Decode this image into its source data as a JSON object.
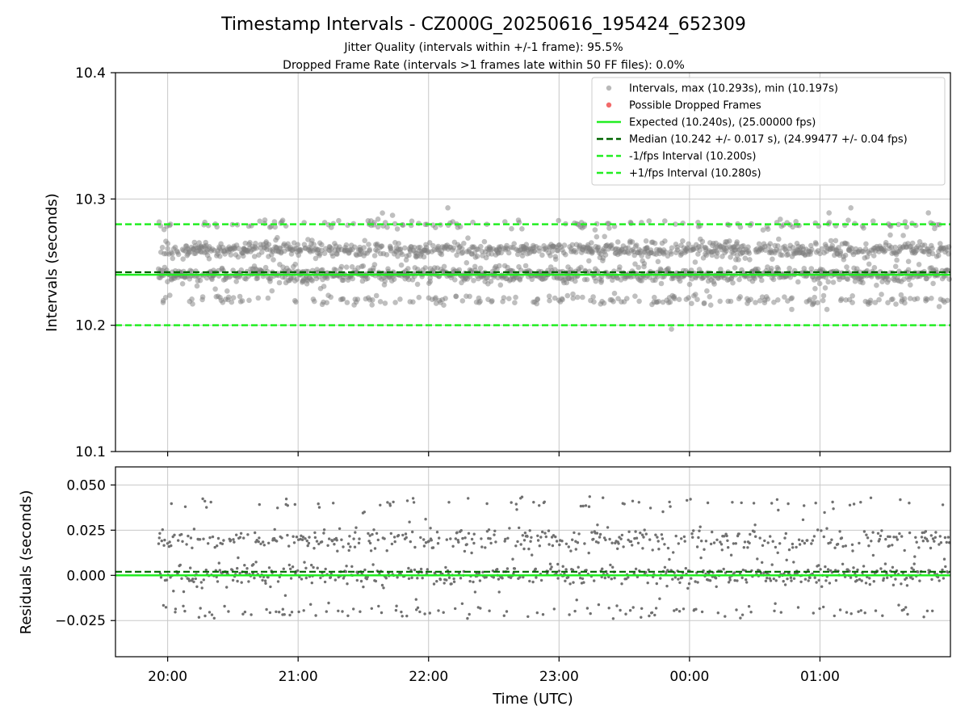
{
  "figure": {
    "title": "Timestamp Intervals - CZ000G_20250616_195424_652309",
    "subtitle_1": "Jitter Quality (intervals within +/-1 frame): 95.5%",
    "subtitle_2": "Dropped Frame Rate (intervals >1 frames late within 50 FF files): 0.0%"
  },
  "colors": {
    "points": "#808080",
    "dropped": "#f05050",
    "expected": "#22ee22",
    "median": "#006400",
    "fps_bounds": "#22ee22",
    "grid": "#c8c8c8"
  },
  "chart_data": [
    {
      "type": "scatter",
      "ylabel": "Intervals (seconds)",
      "xlabel": "",
      "ylim": [
        10.1,
        10.4
      ],
      "yticks": [
        "10.1",
        "10.2",
        "10.3",
        "10.4"
      ],
      "x_range_hours": [
        19.6,
        26.0
      ],
      "grid": true,
      "legend_position": "top-right",
      "legend": [
        "Intervals, max (10.293s), min (10.197s)",
        "Possible Dropped Frames",
        "Expected (10.240s), (25.00000 fps)",
        "Median (10.242 +/- 0.017 s), (24.99477 +/- 0.04 fps)",
        "-1/fps Interval (10.200s)",
        "+1/fps Interval (10.280s)"
      ],
      "expected": 10.24,
      "median": 10.242,
      "minus_fps_interval": 10.2,
      "plus_fps_interval": 10.28,
      "max_interval": 10.293,
      "min_interval": 10.197,
      "point_clusters": [
        {
          "center": 10.24,
          "spread": 0.003,
          "share": 0.42
        },
        {
          "center": 10.26,
          "spread": 0.003,
          "share": 0.38
        },
        {
          "center": 10.22,
          "spread": 0.002,
          "share": 0.1
        },
        {
          "center": 10.28,
          "spread": 0.002,
          "share": 0.07
        },
        {
          "center": 10.25,
          "spread": 0.02,
          "share": 0.03
        }
      ],
      "n_points": 2150,
      "dropped_frames": 0
    },
    {
      "type": "scatter",
      "ylabel": "Residuals (seconds)",
      "xlabel": "Time (UTC)",
      "ylim": [
        -0.045,
        0.06
      ],
      "yticks": [
        "−0.025",
        "0.000",
        "0.025",
        "0.050"
      ],
      "ytick_values": [
        -0.025,
        0.0,
        0.025,
        0.05
      ],
      "xticks": [
        "20:00",
        "21:00",
        "22:00",
        "23:00",
        "00:00",
        "01:00"
      ],
      "xtick_hours": [
        20,
        21,
        22,
        23,
        24,
        25
      ],
      "x_range_hours": [
        19.6,
        26.0
      ],
      "grid": true,
      "zero_line": 0.0,
      "median_residual": 0.002,
      "point_clusters": [
        {
          "center": 0.0,
          "spread": 0.003,
          "share": 0.42
        },
        {
          "center": 0.02,
          "spread": 0.003,
          "share": 0.38
        },
        {
          "center": -0.02,
          "spread": 0.002,
          "share": 0.1
        },
        {
          "center": 0.04,
          "spread": 0.002,
          "share": 0.07
        },
        {
          "center": 0.01,
          "spread": 0.02,
          "share": 0.03
        }
      ],
      "n_points": 1150
    }
  ]
}
